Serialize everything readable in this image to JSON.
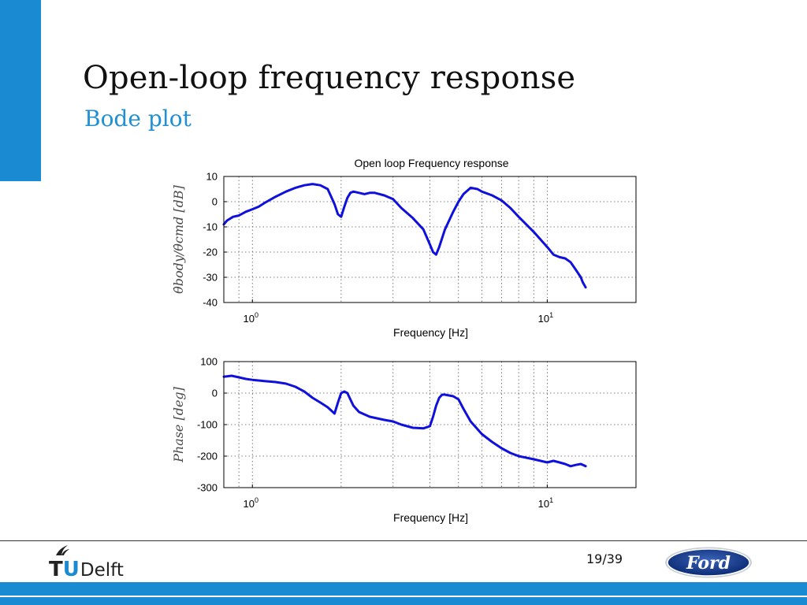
{
  "slide": {
    "title": "Open-loop frequency response",
    "subtitle": "Bode plot",
    "page": "19/39",
    "logo_left_text": "TUDelft",
    "logo_right_text": "Ford"
  },
  "colors": {
    "accent": "#1a8bd2",
    "series": "#1010dd"
  },
  "chart_data": [
    {
      "type": "line",
      "title": "Open loop Frequency response",
      "xlabel": "Frequency [Hz]",
      "ylabel": "θ̇body/θ̇cmd [dB]",
      "xscale": "log",
      "xlim": [
        0.8,
        20
      ],
      "ylim": [
        -40,
        10
      ],
      "yticks": [
        10,
        0,
        -10,
        -20,
        -30,
        -40
      ],
      "xticks": [
        {
          "value": 1,
          "base": "10",
          "exp": "0"
        },
        {
          "value": 10,
          "base": "10",
          "exp": "1"
        }
      ],
      "grid": true,
      "series": [
        {
          "x": [
            0.8,
            0.82,
            0.86,
            0.9,
            0.95,
            1.0,
            1.05,
            1.1,
            1.2,
            1.3,
            1.4,
            1.5,
            1.6,
            1.7,
            1.8,
            1.85,
            1.9,
            1.95,
            2.0,
            2.05,
            2.1,
            2.15,
            2.2,
            2.3,
            2.4,
            2.5,
            2.6,
            2.8,
            3.0,
            3.2,
            3.5,
            3.8,
            4.0,
            4.1,
            4.2,
            4.3,
            4.5,
            4.8,
            5.0,
            5.2,
            5.5,
            5.8,
            6.0,
            6.5,
            7.0,
            7.5,
            8.0,
            9.0,
            10.0,
            10.5,
            11.0,
            11.5,
            12.0,
            12.5,
            13.0,
            13.2,
            13.5
          ],
          "y": [
            -9,
            -7.5,
            -6,
            -5.5,
            -4,
            -3,
            -2,
            -0.5,
            2,
            4,
            5.5,
            6.5,
            7,
            6.5,
            5,
            2,
            -1,
            -5,
            -6,
            -2,
            1.5,
            3.5,
            4,
            3.5,
            3,
            3.5,
            3.5,
            2.5,
            1,
            -2.5,
            -6.5,
            -11,
            -17,
            -20,
            -21,
            -18,
            -11,
            -4,
            0,
            3,
            5.5,
            5,
            4,
            2.5,
            0.5,
            -2.5,
            -6,
            -12,
            -18,
            -21,
            -22,
            -22.5,
            -24,
            -27,
            -30,
            -32,
            -34
          ]
        }
      ]
    },
    {
      "type": "line",
      "title": "",
      "xlabel": "Frequency [Hz]",
      "ylabel": "Phase [deg]",
      "xscale": "log",
      "xlim": [
        0.8,
        20
      ],
      "ylim": [
        -300,
        100
      ],
      "yticks": [
        100,
        0,
        -100,
        -200,
        -300
      ],
      "xticks": [
        {
          "value": 1,
          "base": "10",
          "exp": "0"
        },
        {
          "value": 10,
          "base": "10",
          "exp": "1"
        }
      ],
      "grid": true,
      "series": [
        {
          "x": [
            0.8,
            0.85,
            0.9,
            0.95,
            1.0,
            1.05,
            1.1,
            1.2,
            1.3,
            1.4,
            1.5,
            1.6,
            1.7,
            1.8,
            1.9,
            1.95,
            2.0,
            2.05,
            2.1,
            2.15,
            2.2,
            2.3,
            2.5,
            2.8,
            3.0,
            3.2,
            3.5,
            3.8,
            4.0,
            4.1,
            4.2,
            4.3,
            4.4,
            4.5,
            4.8,
            5.0,
            5.2,
            5.5,
            6.0,
            6.5,
            7.0,
            7.5,
            8.0,
            9.0,
            10.0,
            10.5,
            11.0,
            11.5,
            12.0,
            12.5,
            13.0,
            13.5
          ],
          "y": [
            52,
            55,
            50,
            45,
            42,
            40,
            38,
            35,
            30,
            20,
            5,
            -15,
            -30,
            -45,
            -65,
            -30,
            0,
            5,
            0,
            -20,
            -40,
            -60,
            -75,
            -85,
            -90,
            -100,
            -110,
            -112,
            -105,
            -75,
            -40,
            -15,
            -5,
            -5,
            -10,
            -20,
            -50,
            -90,
            -130,
            -155,
            -175,
            -190,
            -200,
            -210,
            -220,
            -215,
            -220,
            -225,
            -232,
            -228,
            -225,
            -232
          ]
        }
      ]
    }
  ]
}
